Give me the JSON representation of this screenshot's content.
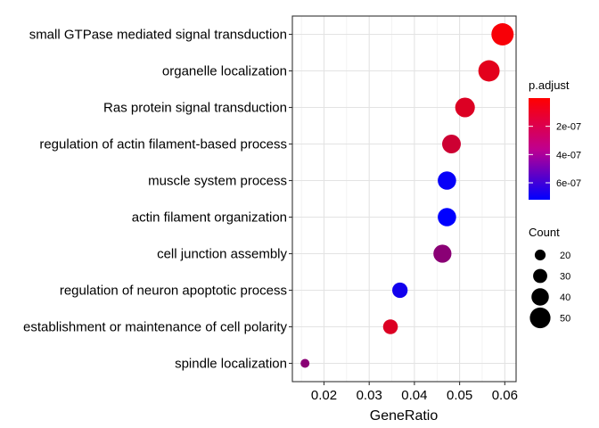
{
  "chart_data": {
    "type": "scatter",
    "title": "",
    "xlabel": "GeneRatio",
    "ylabel": "",
    "xlim": [
      0.013,
      0.0625
    ],
    "xticks": [
      0.02,
      0.03,
      0.04,
      0.05,
      0.06
    ],
    "xtick_labels": [
      "0.02",
      "0.03",
      "0.04",
      "0.05",
      "0.06"
    ],
    "grid": true,
    "points": [
      {
        "term": "small GTPase mediated signal transduction",
        "gene_ratio": 0.0595,
        "count": 55,
        "p_adjust": 2e-08
      },
      {
        "term": "organelle localization",
        "gene_ratio": 0.0565,
        "count": 52,
        "p_adjust": 8e-08
      },
      {
        "term": "Ras protein signal transduction",
        "gene_ratio": 0.0512,
        "count": 47,
        "p_adjust": 1e-07
      },
      {
        "term": "regulation of actin filament-based process",
        "gene_ratio": 0.0482,
        "count": 44,
        "p_adjust": 1.4e-07
      },
      {
        "term": "muscle system process",
        "gene_ratio": 0.0472,
        "count": 43,
        "p_adjust": 7e-07
      },
      {
        "term": "actin filament organization",
        "gene_ratio": 0.0472,
        "count": 43,
        "p_adjust": 7.2e-07
      },
      {
        "term": "cell junction assembly",
        "gene_ratio": 0.0462,
        "count": 42,
        "p_adjust": 3.3e-07
      },
      {
        "term": "regulation of neuron apoptotic process",
        "gene_ratio": 0.0368,
        "count": 34,
        "p_adjust": 6.7e-07
      },
      {
        "term": "establishment or maintenance of cell polarity",
        "gene_ratio": 0.0347,
        "count": 32,
        "p_adjust": 1e-07
      },
      {
        "term": "spindle localization",
        "gene_ratio": 0.0158,
        "count": 14,
        "p_adjust": 3.3e-07
      }
    ],
    "color_legend": {
      "title": "p.adjust",
      "min": 0.0,
      "max": 7.2e-07,
      "low_color": "#ff0000",
      "high_color": "#0000ff",
      "ticks": [
        2e-07,
        4e-07,
        6e-07
      ],
      "tick_labels": [
        "2e-07",
        "4e-07",
        "6e-07"
      ]
    },
    "size_legend": {
      "title": "Count",
      "values": [
        20,
        30,
        40,
        50
      ],
      "labels": [
        "20",
        "30",
        "40",
        "50"
      ],
      "count_range": [
        14,
        55
      ]
    }
  }
}
